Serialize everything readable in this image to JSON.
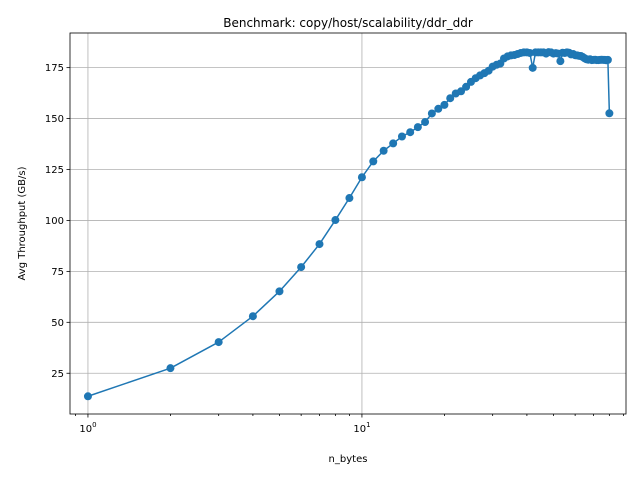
{
  "chart_data": {
    "type": "line",
    "title": "Benchmark: copy/host/scalability/ddr_ddr",
    "xlabel": "n_bytes",
    "ylabel": "Avg Throughput (GB/s)",
    "xscale": "log",
    "xlim": [
      0.86,
      92
    ],
    "ylim": [
      5,
      192
    ],
    "grid": true,
    "xticks": [
      {
        "value": 1,
        "base": "10",
        "exp": "0"
      },
      {
        "value": 10,
        "base": "10",
        "exp": "1"
      }
    ],
    "yticks": [
      25,
      50,
      75,
      100,
      125,
      150,
      175
    ],
    "color": "#1f77b4",
    "series": [
      {
        "x": [
          1,
          2,
          3,
          4,
          5,
          6,
          7,
          8,
          9,
          10,
          11,
          12,
          13,
          14,
          15,
          16,
          17,
          18,
          19,
          20,
          21,
          22,
          23,
          24,
          25,
          26,
          27,
          28,
          29,
          30,
          31,
          32,
          33,
          34,
          35,
          36,
          37,
          38,
          39,
          40,
          41,
          42,
          43,
          44,
          45,
          46,
          47,
          48,
          49,
          50,
          51,
          52,
          53,
          54,
          55,
          56,
          57,
          58,
          59,
          60,
          61,
          62,
          63,
          64,
          65,
          66,
          67,
          68,
          69,
          70,
          71,
          72,
          73,
          74,
          75,
          76,
          77,
          78,
          79,
          80
        ],
        "y": [
          13.7,
          27.5,
          40.3,
          53.0,
          65.2,
          77.1,
          88.4,
          100.2,
          111.0,
          121.2,
          129.0,
          134.2,
          137.8,
          141.2,
          143.3,
          145.8,
          148.3,
          152.5,
          154.8,
          156.7,
          160.0,
          162.3,
          163.4,
          165.6,
          168.0,
          169.8,
          171.2,
          172.3,
          173.5,
          175.5,
          176.4,
          177.0,
          179.5,
          180.5,
          181.0,
          181.2,
          181.7,
          182.2,
          182.5,
          182.5,
          182.2,
          174.9,
          182.5,
          182.5,
          182.5,
          182.5,
          181.9,
          182.6,
          182.5,
          181.9,
          182.1,
          181.9,
          178.2,
          182.3,
          182.2,
          182.5,
          182.3,
          181.5,
          181.7,
          181.1,
          181.0,
          180.8,
          180.7,
          180.2,
          179.6,
          179.1,
          178.9,
          179.1,
          178.7,
          178.8,
          178.9,
          178.7,
          178.7,
          178.8,
          178.9,
          178.8,
          178.8,
          178.6,
          178.8,
          152.6
        ]
      }
    ]
  }
}
